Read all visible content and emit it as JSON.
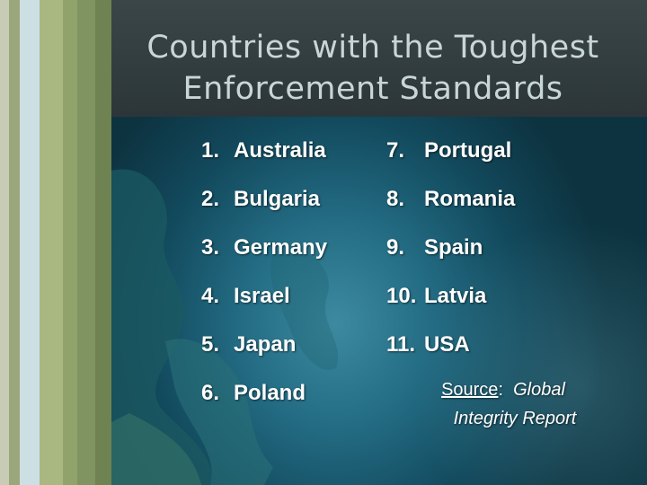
{
  "title": "Countries with the Toughest Enforcement Standards",
  "title_line1": "Countries with the Toughest",
  "title_line2": "Enforcement Standards",
  "left_column": [
    {
      "num": "1.",
      "name": "Australia"
    },
    {
      "num": "2.",
      "name": "Bulgaria"
    },
    {
      "num": "3.",
      "name": "Germany"
    },
    {
      "num": "4.",
      "name": "Israel"
    },
    {
      "num": "5.",
      "name": "Japan"
    },
    {
      "num": "6.",
      "name": "Poland"
    }
  ],
  "right_column": [
    {
      "num": "7.",
      "name": "Portugal"
    },
    {
      "num": "8.",
      "name": "Romania"
    },
    {
      "num": "9.",
      "name": "Spain"
    },
    {
      "num": "10.",
      "name": "Latvia"
    },
    {
      "num": "11.",
      "name": "USA"
    }
  ],
  "source": {
    "label": "Source",
    "separator": ":",
    "text_line1": "Global",
    "text_line2": "Integrity Report"
  },
  "colors": {
    "title_text": "#c9d6d8",
    "body_text": "#ffffff",
    "globe": "#236c84"
  }
}
